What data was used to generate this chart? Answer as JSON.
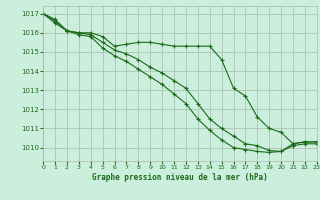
{
  "title": "Graphe pression niveau de la mer (hPa)",
  "background_color": "#cceedd",
  "grid_color": "#aabbaa",
  "line_color": "#1a6b1a",
  "x_min": 0,
  "x_max": 23,
  "y_min": 1009.3,
  "y_max": 1017.4,
  "yticks": [
    1010,
    1011,
    1012,
    1013,
    1014,
    1015,
    1016,
    1017
  ],
  "xticks": [
    0,
    1,
    2,
    3,
    4,
    5,
    6,
    7,
    8,
    9,
    10,
    11,
    12,
    13,
    14,
    15,
    16,
    17,
    18,
    19,
    20,
    21,
    22,
    23
  ],
  "series": {
    "line1": [
      1017.0,
      1016.7,
      1016.1,
      1016.0,
      1016.0,
      1015.8,
      1015.3,
      1015.4,
      1015.5,
      1015.5,
      1015.4,
      1015.3,
      1015.3,
      1015.3,
      1015.3,
      1014.6,
      1013.1,
      1012.7,
      1011.6,
      1011.0,
      1010.8,
      1010.2,
      1010.3,
      1010.3
    ],
    "line2": [
      1017.0,
      1016.6,
      1016.1,
      1016.0,
      1015.9,
      1015.5,
      1015.1,
      1014.9,
      1014.6,
      1014.2,
      1013.9,
      1013.5,
      1013.1,
      1012.3,
      1011.5,
      1011.0,
      1010.6,
      1010.2,
      1010.1,
      1009.85,
      1009.8,
      1010.2,
      1010.3,
      1010.3
    ],
    "line3": [
      1017.0,
      1016.5,
      1016.1,
      1015.9,
      1015.8,
      1015.2,
      1014.8,
      1014.5,
      1014.1,
      1013.7,
      1013.3,
      1012.8,
      1012.3,
      1011.5,
      1010.9,
      1010.4,
      1010.0,
      1009.9,
      1009.8,
      1009.75,
      1009.8,
      1010.1,
      1010.2,
      1010.2
    ]
  }
}
